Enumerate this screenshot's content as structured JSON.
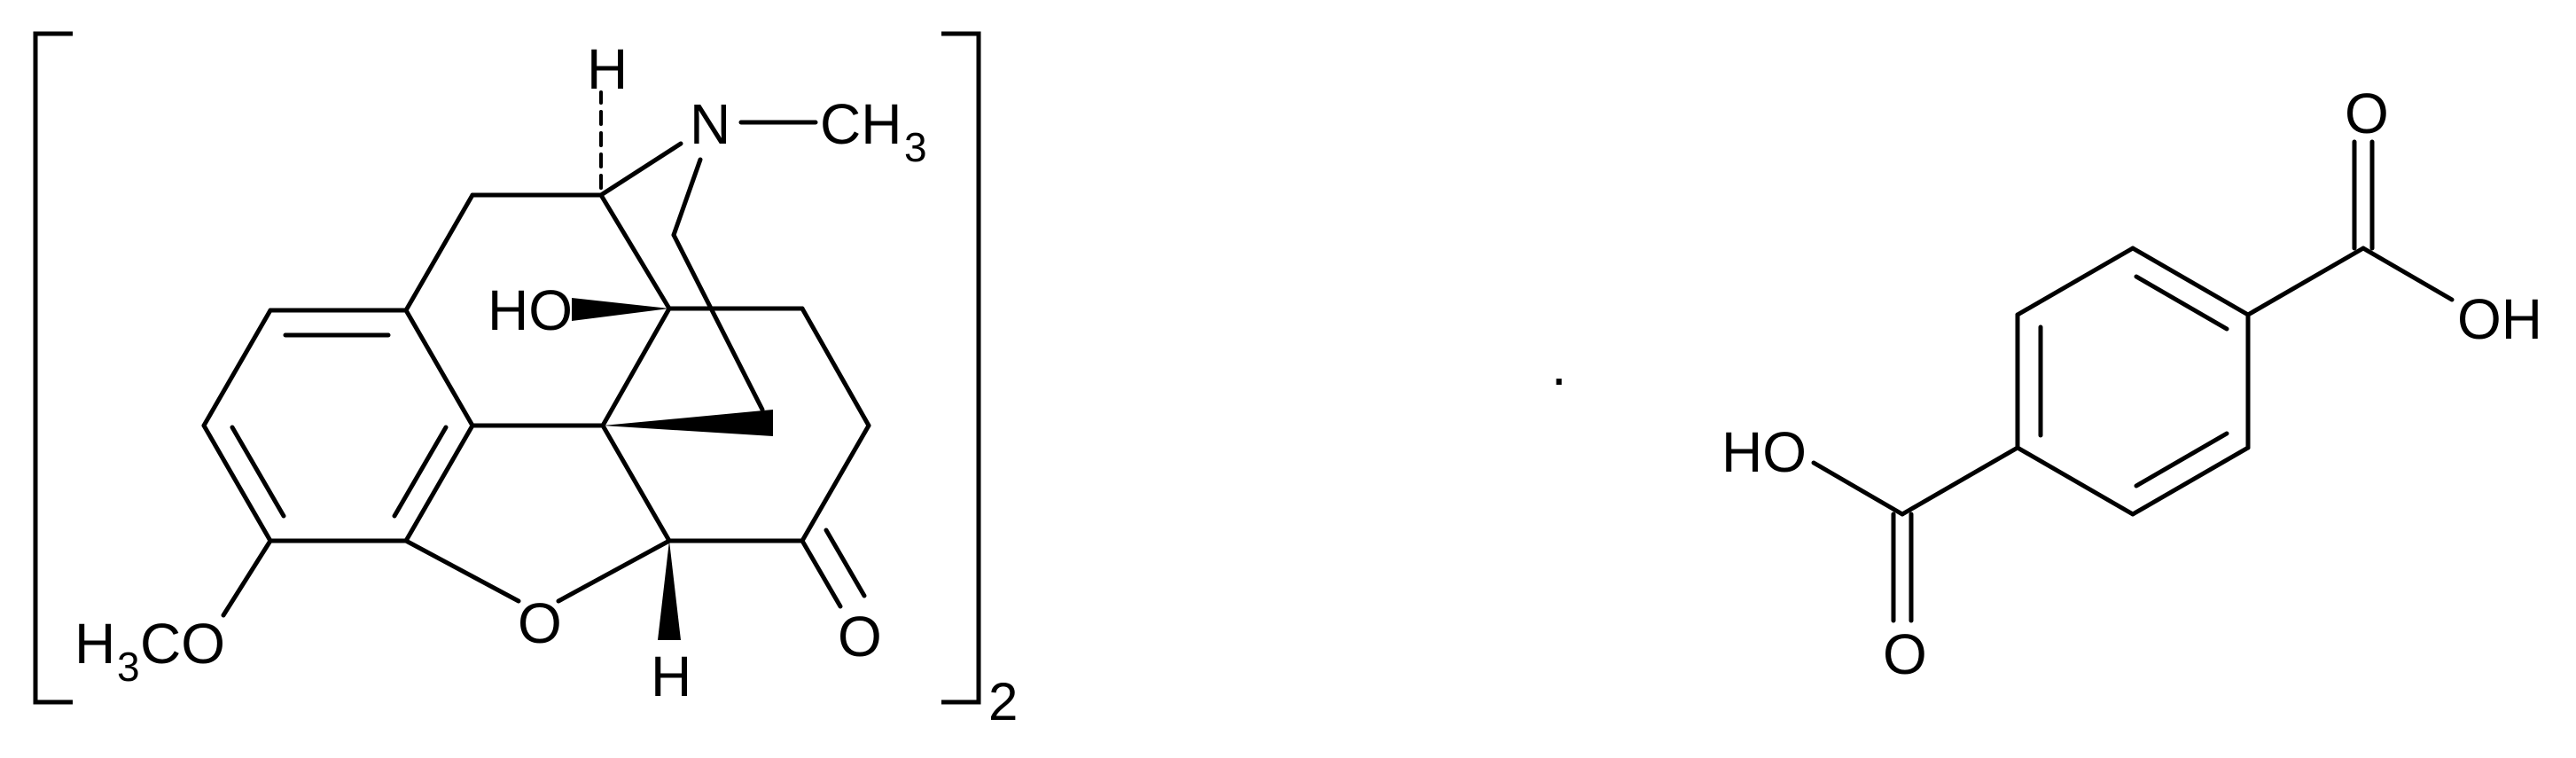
{
  "diagram": {
    "main_molecule": {
      "atoms": {
        "h_top": "H",
        "n": "N",
        "ch3_c": "CH",
        "ch3_sub": "3",
        "ho": "HO",
        "h3c_h": "H",
        "h3c_sub": "3",
        "h3c_co": "CO",
        "o_ring": "O",
        "h_bottom": "H",
        "o_ketone": "O"
      },
      "multiplier": "2"
    },
    "separator": "·",
    "counter_ion": {
      "atoms": {
        "o_top": "O",
        "oh_right": "OH",
        "ho_left": "HO",
        "o_bottom": "O"
      }
    }
  }
}
